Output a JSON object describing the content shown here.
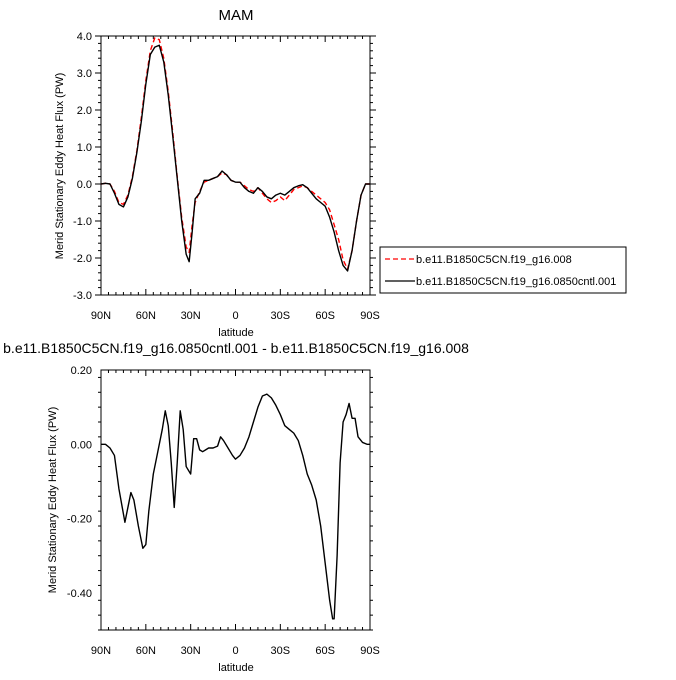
{
  "chart_data": [
    {
      "type": "line",
      "title": "MAM",
      "xlabel": "latitude",
      "ylabel": "Merid Stationary Eddy Heat Flux (PW)",
      "xlim": [
        90,
        -90
      ],
      "ylim": [
        -3.0,
        4.0
      ],
      "x_ticks": [
        {
          "value": 90,
          "label": "90N"
        },
        {
          "value": 60,
          "label": "60N"
        },
        {
          "value": 30,
          "label": "30N"
        },
        {
          "value": 0,
          "label": "0"
        },
        {
          "value": -30,
          "label": "30S"
        },
        {
          "value": -60,
          "label": "60S"
        },
        {
          "value": -90,
          "label": "90S"
        }
      ],
      "y_ticks": [
        {
          "value": 4.0,
          "label": "4.0"
        },
        {
          "value": 3.0,
          "label": "3.0"
        },
        {
          "value": 2.0,
          "label": "2.0"
        },
        {
          "value": 1.0,
          "label": "1.0"
        },
        {
          "value": 0.0,
          "label": "0.0"
        },
        {
          "value": -1.0,
          "label": "-1.0"
        },
        {
          "value": -2.0,
          "label": "-2.0"
        },
        {
          "value": -3.0,
          "label": "-3.0"
        }
      ],
      "legend": {
        "placement": "right"
      },
      "series": [
        {
          "name": "b.e11.B1850C5CN.f19_g16.008",
          "color": "#ff0000",
          "dash": "dashed",
          "points": [
            [
              90,
              0.0
            ],
            [
              87,
              0.02
            ],
            [
              84,
              0.0
            ],
            [
              81,
              -0.2
            ],
            [
              78,
              -0.5
            ],
            [
              75,
              -0.55
            ],
            [
              72,
              -0.3
            ],
            [
              69,
              0.2
            ],
            [
              66,
              0.9
            ],
            [
              63,
              1.8
            ],
            [
              60,
              2.8
            ],
            [
              57,
              3.6
            ],
            [
              54,
              3.95
            ],
            [
              51,
              3.9
            ],
            [
              48,
              3.4
            ],
            [
              45,
              2.5
            ],
            [
              42,
              1.4
            ],
            [
              39,
              0.2
            ],
            [
              36,
              -0.9
            ],
            [
              33,
              -1.7
            ],
            [
              31,
              -1.85
            ],
            [
              29,
              -1.1
            ],
            [
              27,
              -0.5
            ],
            [
              24,
              -0.2
            ],
            [
              21,
              0.05
            ],
            [
              18,
              0.1
            ],
            [
              15,
              0.15
            ],
            [
              12,
              0.2
            ],
            [
              9,
              0.3
            ],
            [
              6,
              0.25
            ],
            [
              3,
              0.1
            ],
            [
              0,
              0.05
            ],
            [
              -3,
              0.05
            ],
            [
              -6,
              -0.05
            ],
            [
              -9,
              -0.15
            ],
            [
              -12,
              -0.2
            ],
            [
              -15,
              -0.1
            ],
            [
              -18,
              -0.25
            ],
            [
              -21,
              -0.4
            ],
            [
              -24,
              -0.5
            ],
            [
              -27,
              -0.45
            ],
            [
              -30,
              -0.35
            ],
            [
              -33,
              -0.45
            ],
            [
              -36,
              -0.3
            ],
            [
              -39,
              -0.15
            ],
            [
              -42,
              -0.1
            ],
            [
              -45,
              -0.05
            ],
            [
              -48,
              -0.1
            ],
            [
              -51,
              -0.2
            ],
            [
              -54,
              -0.3
            ],
            [
              -57,
              -0.4
            ],
            [
              -60,
              -0.5
            ],
            [
              -63,
              -0.7
            ],
            [
              -66,
              -1.1
            ],
            [
              -69,
              -1.5
            ],
            [
              -72,
              -2.05
            ],
            [
              -75,
              -2.3
            ],
            [
              -78,
              -1.8
            ],
            [
              -81,
              -1.0
            ],
            [
              -84,
              -0.3
            ],
            [
              -87,
              0.0
            ],
            [
              -90,
              0.0
            ]
          ]
        },
        {
          "name": "b.e11.B1850C5CN.f19_g16.0850cntl.001",
          "color": "#000000",
          "dash": "solid",
          "points": [
            [
              90,
              0.0
            ],
            [
              87,
              0.02
            ],
            [
              84,
              0.0
            ],
            [
              81,
              -0.25
            ],
            [
              78,
              -0.55
            ],
            [
              75,
              -0.62
            ],
            [
              72,
              -0.35
            ],
            [
              69,
              0.15
            ],
            [
              66,
              0.85
            ],
            [
              63,
              1.7
            ],
            [
              60,
              2.7
            ],
            [
              57,
              3.5
            ],
            [
              54,
              3.7
            ],
            [
              51,
              3.75
            ],
            [
              48,
              3.3
            ],
            [
              45,
              2.4
            ],
            [
              42,
              1.3
            ],
            [
              39,
              0.15
            ],
            [
              36,
              -1.0
            ],
            [
              33,
              -1.9
            ],
            [
              31,
              -2.1
            ],
            [
              29,
              -1.3
            ],
            [
              27,
              -0.4
            ],
            [
              24,
              -0.25
            ],
            [
              21,
              0.1
            ],
            [
              18,
              0.1
            ],
            [
              15,
              0.15
            ],
            [
              12,
              0.2
            ],
            [
              9,
              0.35
            ],
            [
              6,
              0.25
            ],
            [
              3,
              0.1
            ],
            [
              0,
              0.05
            ],
            [
              -3,
              0.05
            ],
            [
              -6,
              -0.1
            ],
            [
              -9,
              -0.2
            ],
            [
              -12,
              -0.25
            ],
            [
              -15,
              -0.1
            ],
            [
              -18,
              -0.2
            ],
            [
              -21,
              -0.35
            ],
            [
              -24,
              -0.4
            ],
            [
              -27,
              -0.3
            ],
            [
              -30,
              -0.25
            ],
            [
              -33,
              -0.3
            ],
            [
              -36,
              -0.2
            ],
            [
              -39,
              -0.1
            ],
            [
              -42,
              -0.05
            ],
            [
              -45,
              -0.02
            ],
            [
              -48,
              -0.1
            ],
            [
              -51,
              -0.25
            ],
            [
              -54,
              -0.4
            ],
            [
              -57,
              -0.5
            ],
            [
              -60,
              -0.6
            ],
            [
              -63,
              -0.9
            ],
            [
              -66,
              -1.3
            ],
            [
              -69,
              -1.8
            ],
            [
              -72,
              -2.2
            ],
            [
              -75,
              -2.35
            ],
            [
              -78,
              -1.8
            ],
            [
              -81,
              -1.0
            ],
            [
              -84,
              -0.3
            ],
            [
              -87,
              0.0
            ],
            [
              -90,
              0.0
            ]
          ]
        }
      ]
    },
    {
      "type": "line",
      "title": "b.e11.B1850C5CN.f19_g16.0850cntl.001 - b.e11.B1850C5CN.f19_g16.008",
      "xlabel": "latitude",
      "ylabel": "Merid Stationary Eddy Heat Flux (PW)",
      "xlim": [
        90,
        -90
      ],
      "ylim": [
        -0.5,
        0.2
      ],
      "x_ticks": [
        {
          "value": 90,
          "label": "90N"
        },
        {
          "value": 60,
          "label": "60N"
        },
        {
          "value": 30,
          "label": "30N"
        },
        {
          "value": 0,
          "label": "0"
        },
        {
          "value": -30,
          "label": "30S"
        },
        {
          "value": -60,
          "label": "60S"
        },
        {
          "value": -90,
          "label": "90S"
        }
      ],
      "y_ticks": [
        {
          "value": 0.2,
          "label": "0.20"
        },
        {
          "value": 0.0,
          "label": "0.00"
        },
        {
          "value": -0.2,
          "label": "-0.20"
        },
        {
          "value": -0.4,
          "label": "-0.40"
        }
      ],
      "series": [
        {
          "color": "#000000",
          "dash": "solid",
          "points": [
            [
              90,
              0.0
            ],
            [
              87,
              0.0
            ],
            [
              84,
              -0.01
            ],
            [
              81,
              -0.03
            ],
            [
              78,
              -0.12
            ],
            [
              74,
              -0.21
            ],
            [
              72,
              -0.17
            ],
            [
              70,
              -0.13
            ],
            [
              68,
              -0.15
            ],
            [
              65,
              -0.22
            ],
            [
              62,
              -0.28
            ],
            [
              60,
              -0.27
            ],
            [
              58,
              -0.18
            ],
            [
              55,
              -0.08
            ],
            [
              52,
              -0.02
            ],
            [
              49,
              0.04
            ],
            [
              47,
              0.09
            ],
            [
              45,
              0.05
            ],
            [
              43,
              -0.05
            ],
            [
              41,
              -0.17
            ],
            [
              39,
              -0.05
            ],
            [
              37,
              0.09
            ],
            [
              35,
              0.04
            ],
            [
              33,
              -0.06
            ],
            [
              30,
              -0.08
            ],
            [
              28,
              0.015
            ],
            [
              26,
              0.015
            ],
            [
              24,
              -0.015
            ],
            [
              22,
              -0.02
            ],
            [
              20,
              -0.015
            ],
            [
              18,
              -0.01
            ],
            [
              15,
              -0.01
            ],
            [
              12,
              -0.005
            ],
            [
              10,
              0.02
            ],
            [
              8,
              0.01
            ],
            [
              5,
              -0.01
            ],
            [
              2,
              -0.03
            ],
            [
              0,
              -0.04
            ],
            [
              -3,
              -0.03
            ],
            [
              -6,
              -0.01
            ],
            [
              -9,
              0.02
            ],
            [
              -12,
              0.06
            ],
            [
              -15,
              0.1
            ],
            [
              -18,
              0.13
            ],
            [
              -21,
              0.135
            ],
            [
              -24,
              0.125
            ],
            [
              -27,
              0.105
            ],
            [
              -30,
              0.08
            ],
            [
              -33,
              0.05
            ],
            [
              -36,
              0.04
            ],
            [
              -39,
              0.03
            ],
            [
              -42,
              0.01
            ],
            [
              -45,
              -0.03
            ],
            [
              -48,
              -0.08
            ],
            [
              -51,
              -0.11
            ],
            [
              -54,
              -0.15
            ],
            [
              -57,
              -0.22
            ],
            [
              -60,
              -0.32
            ],
            [
              -63,
              -0.42
            ],
            [
              -65,
              -0.47
            ],
            [
              -66,
              -0.47
            ],
            [
              -68,
              -0.3
            ],
            [
              -70,
              -0.05
            ],
            [
              -72,
              0.06
            ],
            [
              -74,
              0.08
            ],
            [
              -76,
              0.11
            ],
            [
              -78,
              0.07
            ],
            [
              -80,
              0.07
            ],
            [
              -82,
              0.02
            ],
            [
              -85,
              0.005
            ],
            [
              -88,
              0.0
            ],
            [
              -90,
              0.0
            ]
          ]
        }
      ]
    }
  ]
}
